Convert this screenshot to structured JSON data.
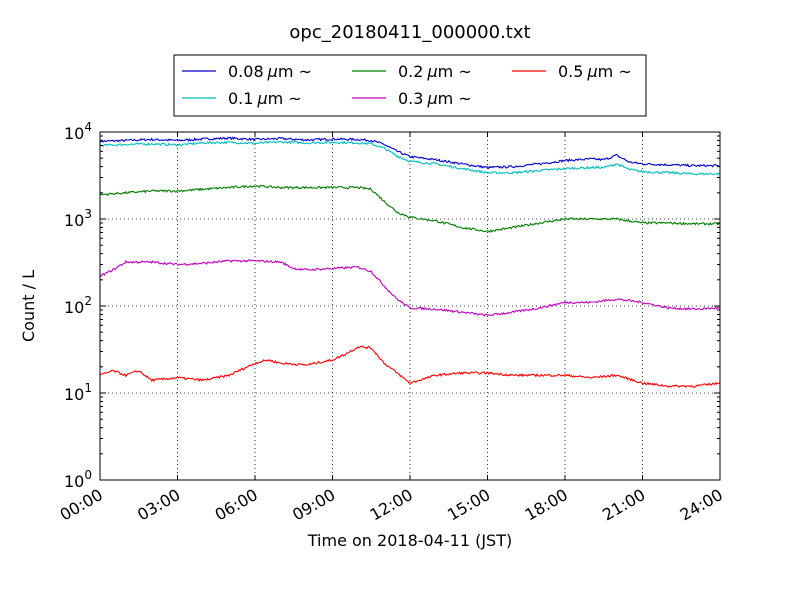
{
  "chart_data": {
    "type": "line",
    "title": "opc_20180411_000000.txt",
    "xlabel": "Time on 2018-04-11 (JST)",
    "ylabel": "Count / L",
    "x_unit": "hours",
    "xlim": [
      0,
      24
    ],
    "ylim": [
      1,
      10000
    ],
    "yscale": "log",
    "grid": true,
    "legend_position": "top",
    "x_ticks": [
      {
        "value": 0,
        "label": "00:00"
      },
      {
        "value": 3,
        "label": "03:00"
      },
      {
        "value": 6,
        "label": "06:00"
      },
      {
        "value": 9,
        "label": "09:00"
      },
      {
        "value": 12,
        "label": "12:00"
      },
      {
        "value": 15,
        "label": "15:00"
      },
      {
        "value": 18,
        "label": "18:00"
      },
      {
        "value": 21,
        "label": "21:00"
      },
      {
        "value": 24,
        "label": "24:00"
      }
    ],
    "y_ticks": [
      {
        "value": 1,
        "base": "10",
        "exp": "0"
      },
      {
        "value": 10,
        "base": "10",
        "exp": "1"
      },
      {
        "value": 100,
        "base": "10",
        "exp": "2"
      },
      {
        "value": 1000,
        "base": "10",
        "exp": "3"
      },
      {
        "value": 10000,
        "base": "10",
        "exp": "4"
      }
    ],
    "series": [
      {
        "name": "0.08 μm ~",
        "label_text": "0.08",
        "color": "#0000cc",
        "x": [
          0,
          1,
          2,
          3,
          4,
          5,
          6,
          7,
          8,
          9,
          10,
          10.5,
          11,
          11.5,
          12,
          13,
          14,
          15,
          16,
          17,
          18,
          19,
          19.5,
          20,
          20.5,
          21,
          22,
          23,
          24
        ],
        "y": [
          7800,
          8000,
          8200,
          8000,
          8300,
          8500,
          8200,
          8400,
          8100,
          8300,
          8200,
          8000,
          7200,
          6000,
          5200,
          4800,
          4300,
          3900,
          4000,
          4300,
          4700,
          4900,
          4800,
          5400,
          4500,
          4300,
          4200,
          4100,
          4100
        ]
      },
      {
        "name": "0.1 μm ~",
        "label_text": "0.1",
        "color": "#00bfbf",
        "x": [
          0,
          1,
          2,
          3,
          4,
          5,
          6,
          7,
          8,
          9,
          10,
          10.5,
          11,
          11.5,
          12,
          13,
          14,
          15,
          16,
          17,
          18,
          19,
          19.5,
          20,
          20.5,
          21,
          22,
          23,
          24
        ],
        "y": [
          7000,
          7200,
          7300,
          7100,
          7500,
          7600,
          7400,
          7700,
          7500,
          7600,
          7500,
          7300,
          6500,
          5300,
          4600,
          4300,
          3800,
          3400,
          3400,
          3600,
          3800,
          3900,
          3900,
          4300,
          3700,
          3500,
          3400,
          3300,
          3300
        ]
      },
      {
        "name": "0.2 μm ~",
        "label_text": "0.2",
        "color": "#007f00",
        "x": [
          0,
          1,
          2,
          3,
          4,
          5,
          6,
          7,
          8,
          9,
          10,
          10.5,
          11,
          11.5,
          12,
          13,
          14,
          15,
          16,
          17,
          18,
          19,
          20,
          21,
          22,
          23,
          24
        ],
        "y": [
          1900,
          2000,
          2100,
          2100,
          2200,
          2300,
          2400,
          2300,
          2300,
          2300,
          2300,
          2200,
          1600,
          1200,
          1050,
          950,
          800,
          720,
          800,
          900,
          1000,
          1000,
          1000,
          900,
          900,
          880,
          880
        ]
      },
      {
        "name": "0.3 μm ~",
        "label_text": "0.3",
        "color": "#bf00bf",
        "x": [
          0,
          0.5,
          1,
          2,
          3,
          4,
          5,
          6,
          7,
          7.5,
          8,
          9,
          10,
          10.5,
          11,
          11.5,
          12,
          13,
          14,
          15,
          16,
          17,
          18,
          19,
          20,
          21,
          22,
          23,
          24
        ],
        "y": [
          220,
          260,
          320,
          320,
          300,
          310,
          330,
          330,
          320,
          270,
          260,
          270,
          280,
          250,
          170,
          120,
          95,
          92,
          85,
          78,
          85,
          95,
          110,
          110,
          120,
          110,
          95,
          92,
          95
        ]
      },
      {
        "name": "0.5 μm ~",
        "label_text": "0.5",
        "color": "#ff0000",
        "x": [
          0,
          0.5,
          1,
          1.5,
          2,
          3,
          4,
          5,
          6,
          6.5,
          7,
          8,
          9,
          9.5,
          10,
          10.5,
          11,
          11.5,
          12,
          13,
          14,
          15,
          16,
          17,
          18,
          19,
          20,
          21,
          22,
          23,
          24
        ],
        "y": [
          16,
          18,
          16,
          18,
          14,
          15,
          14,
          16,
          22,
          24,
          22,
          21,
          24,
          28,
          34,
          33,
          22,
          17,
          13,
          16,
          17,
          17,
          16,
          16,
          16,
          15,
          16,
          13,
          12,
          12,
          13
        ]
      }
    ]
  }
}
